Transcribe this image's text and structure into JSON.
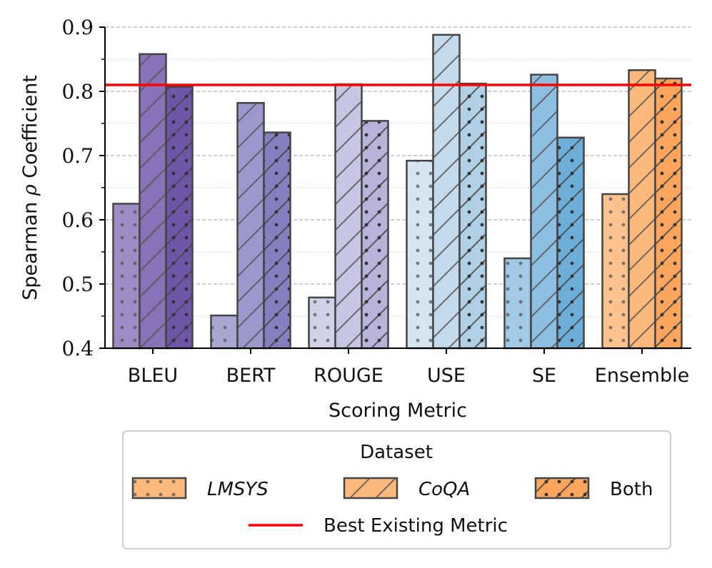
{
  "chart_data": {
    "type": "bar",
    "xlabel": "Scoring Metric",
    "ylabel_parts": [
      "Spearman ",
      "ρ",
      " Coefficient"
    ],
    "ylim": [
      0.4,
      0.9
    ],
    "yticks": [
      "0.4",
      "0.5",
      "0.6",
      "0.7",
      "0.8",
      "0.9"
    ],
    "categories": [
      "BLEU",
      "BERT",
      "ROUGE",
      "USE",
      "SE",
      "Ensemble"
    ],
    "series": [
      {
        "name": "LMSYS",
        "italic": true,
        "hatch": "dots",
        "values": [
          0.625,
          0.451,
          0.479,
          0.692,
          0.54,
          0.64
        ]
      },
      {
        "name": "CoQA",
        "italic": true,
        "hatch": "slash",
        "values": [
          0.858,
          0.782,
          0.811,
          0.888,
          0.826,
          0.833
        ]
      },
      {
        "name": "Both",
        "italic": false,
        "hatch": "slash-dots",
        "values": [
          0.807,
          0.736,
          0.754,
          0.812,
          0.728,
          0.82
        ]
      }
    ],
    "category_colors": [
      [
        "#9d8bc4",
        "#8a72b8",
        "#6f55a8"
      ],
      [
        "#a9a6d3",
        "#9a98cc",
        "#857fc0"
      ],
      [
        "#d1d1e8",
        "#c6c6e2",
        "#b7b3da"
      ],
      [
        "#d5e6f1",
        "#c3dbeb",
        "#b0d0e5"
      ],
      [
        "#a2c9e6",
        "#8cbfe2",
        "#6baed7"
      ],
      [
        "#fdc28e",
        "#fdb87b",
        "#fda55d"
      ]
    ],
    "reference_line": {
      "label": "Best Existing Metric",
      "value": 0.81,
      "color": "#ff0000"
    },
    "legend": {
      "title": "Dataset",
      "location": "bottom-center",
      "swatch_color": "#fdb87b",
      "both_swatch_color": "#fda55d"
    },
    "grid": {
      "major": true,
      "minor": true
    }
  }
}
